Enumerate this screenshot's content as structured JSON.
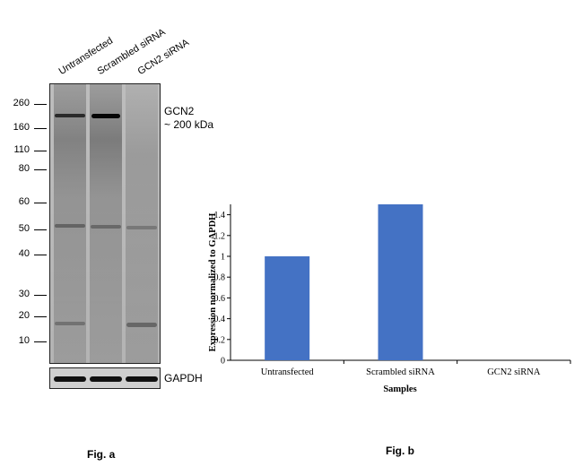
{
  "figure_a": {
    "lanes": [
      "Untransfected",
      "Scrambled siRNA",
      "GCN2 siRNA"
    ],
    "mw_markers": [
      "260",
      "160",
      "110",
      "80",
      "60",
      "50",
      "40",
      "30",
      "20",
      "10"
    ],
    "target_label": "GCN2",
    "target_size": "~ 200 kDa",
    "loading_control": "GAPDH",
    "caption": "Fig. a"
  },
  "figure_b": {
    "caption": "Fig. b"
  },
  "chart_data": {
    "type": "bar",
    "categories": [
      "Untransfected",
      "Scrambled siRNA",
      "GCN2 siRNA"
    ],
    "values": [
      1.0,
      1.5,
      0.0
    ],
    "title": "",
    "xlabel": "Samples",
    "ylabel": "Expression normalized to GAPDH",
    "ylim": [
      0,
      1.5
    ],
    "yticks": [
      "0",
      "0.2",
      "0.4",
      "0.6",
      "0.8",
      "1",
      "1.2",
      "1.4"
    ],
    "bar_color": "#4472c4",
    "grid": false,
    "legend": "none"
  }
}
